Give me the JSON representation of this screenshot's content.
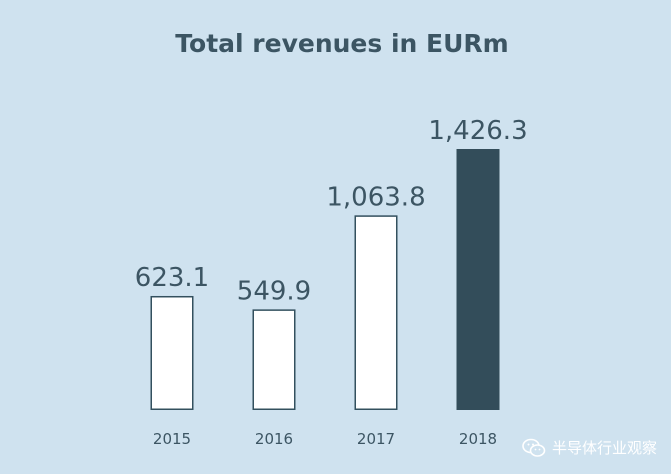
{
  "chart_data": {
    "type": "bar",
    "title": "Total revenues in EURm",
    "categories": [
      "2015",
      "2016",
      "2017",
      "2018"
    ],
    "values": [
      623.1,
      549.9,
      1063.8,
      1426.3
    ],
    "value_labels": [
      "623.1",
      "549.9",
      "1,063.8",
      "1,426.3"
    ],
    "highlight_index": 3,
    "xlabel": "",
    "ylabel": "",
    "grid": false,
    "legend": "none"
  },
  "colors": {
    "background": "#cfe2ef",
    "bar_outline": "#33505e",
    "bar_fill": "#ffffff",
    "bar_highlight": "#334d5a",
    "text": "#3c5563"
  },
  "watermark": {
    "icon": "wechat-icon",
    "text": "半导体行业观察"
  }
}
